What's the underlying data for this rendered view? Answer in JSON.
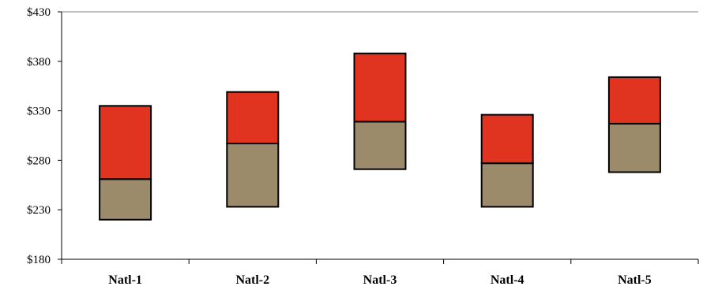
{
  "chart_data": {
    "type": "bar",
    "subtype": "stacked-floating",
    "title": "",
    "xlabel": "",
    "ylabel": "",
    "ylim": [
      180,
      430
    ],
    "y_ticks": [
      180,
      230,
      280,
      330,
      380,
      430
    ],
    "y_tick_labels": [
      "$180",
      "$230",
      "$280",
      "$330",
      "$380",
      "$430"
    ],
    "grid": false,
    "legend": "none",
    "categories": [
      "Natl-1",
      "Natl-2",
      "Natl-3",
      "Natl-4",
      "Natl-5"
    ],
    "series": [
      {
        "color": "#9B8B6B",
        "low": [
          220,
          233,
          271,
          233,
          268
        ],
        "high": [
          261,
          297,
          319,
          277,
          317
        ]
      },
      {
        "color": "#E03320",
        "low": [
          261,
          297,
          319,
          277,
          317
        ],
        "high": [
          335,
          349,
          388,
          326,
          364
        ]
      }
    ]
  }
}
